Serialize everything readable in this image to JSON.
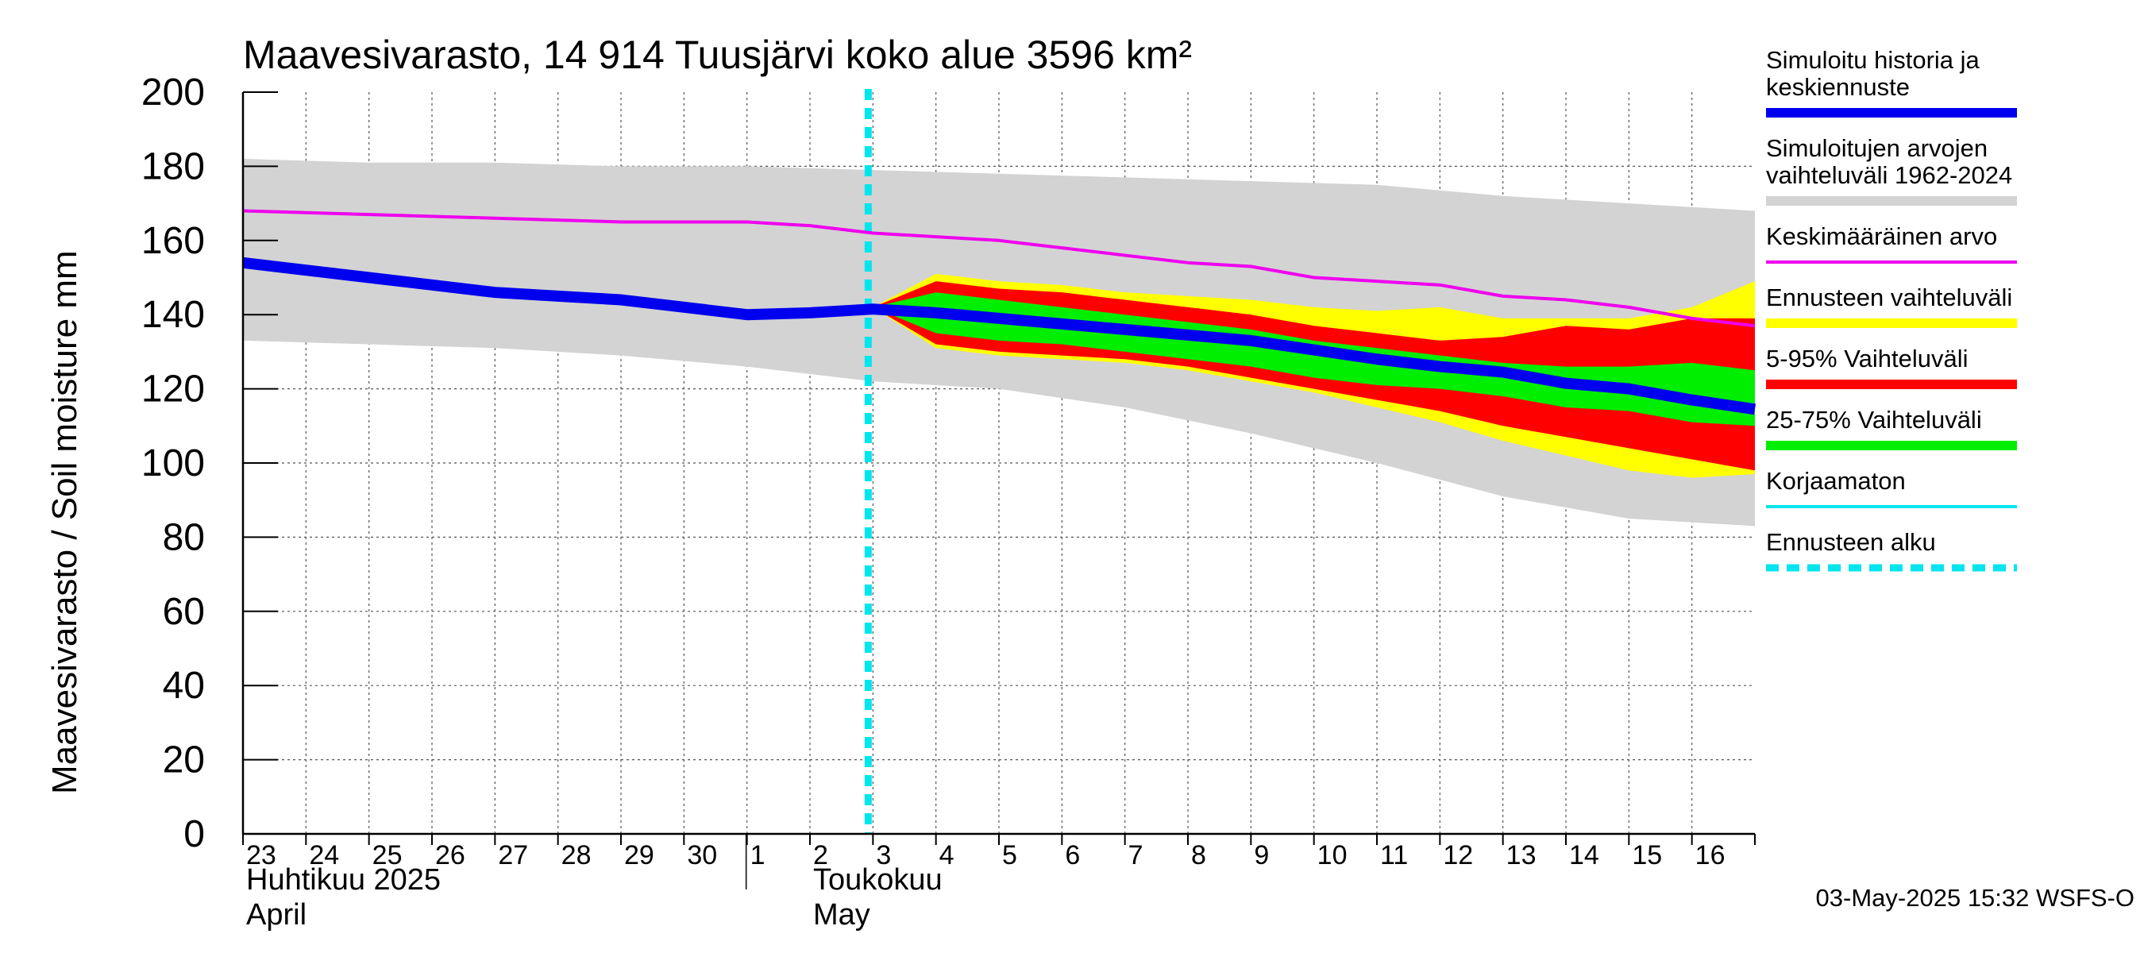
{
  "chart_data": {
    "type": "area",
    "title": "Maavesivarasto, 14 914 Tuusjärvi koko alue 3596 km²",
    "ylabel": "Maavesivarasto / Soil moisture   mm",
    "ylim": [
      0,
      200
    ],
    "yticks": [
      "0",
      "20",
      "40",
      "60",
      "80",
      "100",
      "120",
      "140",
      "160",
      "180",
      "200"
    ],
    "xlim": [
      0,
      24
    ],
    "x_tick_labels": [
      "23",
      "24",
      "25",
      "26",
      "27",
      "28",
      "29",
      "30",
      "1",
      "2",
      "3",
      "4",
      "5",
      "6",
      "7",
      "8",
      "9",
      "10",
      "11",
      "12",
      "13",
      "14",
      "15",
      "16"
    ],
    "month_labels": [
      {
        "fi": "Huhtikuu  2025",
        "en": "April",
        "day_index": 0
      },
      {
        "fi": "Toukokuu",
        "en": "May",
        "day_index": 9
      }
    ],
    "forecast_start_day": 10,
    "series": [
      {
        "name": "Simuloitujen arvojen vaihteluväli 1962-2024",
        "kind": "band",
        "x": [
          0,
          2,
          4,
          6,
          8,
          10,
          12,
          14,
          16,
          18,
          20,
          22,
          24
        ],
        "upper": [
          182,
          181,
          181,
          180,
          180,
          179,
          178,
          177,
          176,
          175,
          172,
          170,
          168
        ],
        "lower": [
          133,
          132,
          131,
          129,
          126,
          122,
          120,
          115,
          108,
          100,
          91,
          85,
          83
        ]
      },
      {
        "name": "Ennusteen vaihteluväli",
        "kind": "band",
        "x": [
          10,
          11,
          12,
          13,
          14,
          15,
          16,
          17,
          18,
          19,
          20,
          21,
          22,
          23,
          24
        ],
        "upper": [
          142,
          151,
          149,
          148,
          146,
          145,
          144,
          142,
          141,
          142,
          139,
          139,
          139,
          142,
          149
        ],
        "lower": [
          142,
          131,
          129,
          128,
          127,
          125,
          122,
          119,
          115,
          111,
          106,
          102,
          98,
          96,
          97
        ]
      },
      {
        "name": "5-95% Vaihteluväli",
        "kind": "band",
        "x": [
          10,
          11,
          12,
          13,
          14,
          15,
          16,
          17,
          18,
          19,
          20,
          21,
          22,
          23,
          24
        ],
        "upper": [
          142,
          149,
          147,
          146,
          144,
          142,
          140,
          137,
          135,
          133,
          134,
          137,
          136,
          139,
          139
        ],
        "lower": [
          142,
          132,
          130,
          129,
          128,
          126,
          123,
          120,
          117,
          114,
          110,
          107,
          104,
          101,
          98
        ]
      },
      {
        "name": "25-75% Vaihteluväli",
        "kind": "band",
        "x": [
          10,
          11,
          12,
          13,
          14,
          15,
          16,
          17,
          18,
          19,
          20,
          21,
          22,
          23,
          24
        ],
        "upper": [
          142,
          146,
          144,
          142,
          140,
          138,
          136,
          133,
          131,
          129,
          127,
          126,
          126,
          127,
          125
        ],
        "lower": [
          142,
          135,
          133,
          132,
          130,
          128,
          126,
          123,
          121,
          120,
          118,
          115,
          114,
          111,
          110
        ]
      },
      {
        "name": "Keskimääräinen arvo",
        "kind": "line",
        "color": "#ee00ee",
        "x": [
          0,
          2,
          4,
          6,
          8,
          9,
          10,
          11,
          12,
          13,
          14,
          15,
          16,
          17,
          18,
          19,
          20,
          21,
          22,
          23,
          24
        ],
        "y": [
          168,
          167,
          166,
          165,
          165,
          164,
          162,
          161,
          160,
          158,
          156,
          154,
          153,
          150,
          149,
          148,
          145,
          144,
          142,
          139,
          137
        ]
      },
      {
        "name": "Korjaamaton",
        "kind": "line",
        "color": "#00e5ee",
        "x": [
          0,
          1,
          2,
          3,
          4,
          5,
          6,
          7,
          8,
          9,
          10
        ],
        "y": [
          154.5,
          153,
          151,
          149,
          147,
          146,
          145,
          143,
          141,
          141,
          142
        ]
      },
      {
        "name": "Simuloitu historia ja keskiennuste",
        "kind": "line",
        "color": "#0000ee",
        "x": [
          0,
          1,
          2,
          3,
          4,
          5,
          6,
          7,
          8,
          9,
          10,
          11,
          12,
          13,
          14,
          15,
          16,
          17,
          18,
          19,
          20,
          21,
          22,
          23,
          24
        ],
        "y": [
          154,
          152,
          150,
          148,
          146,
          145,
          144,
          142,
          140,
          140.5,
          141.5,
          140.5,
          139,
          137.5,
          136,
          134.5,
          133,
          130.5,
          128,
          126,
          124.5,
          121.5,
          120,
          117,
          114.5
        ]
      }
    ]
  },
  "legend": {
    "items": [
      {
        "label_lines": [
          "Simuloitu historia ja",
          "keskiennuste"
        ],
        "color": "#0000ee",
        "style": "thick"
      },
      {
        "label_lines": [
          "Simuloitujen arvojen",
          "vaihteluväli 1962-2024"
        ],
        "color": "#d3d3d3",
        "style": "thick"
      },
      {
        "label_lines": [
          "Keskimääräinen arvo"
        ],
        "color": "#ee00ee",
        "style": "thin"
      },
      {
        "label_lines": [
          "Ennusteen vaihteluväli"
        ],
        "color": "#ffff00",
        "style": "thick"
      },
      {
        "label_lines": [
          "5-95% Vaihteluväli"
        ],
        "color": "#ff0000",
        "style": "thick"
      },
      {
        "label_lines": [
          "25-75% Vaihteluväli"
        ],
        "color": "#00ee00",
        "style": "thick"
      },
      {
        "label_lines": [
          "Korjaamaton"
        ],
        "color": "#00e5ee",
        "style": "thin"
      },
      {
        "label_lines": [
          "Ennusteen alku"
        ],
        "color": "#00e5ee",
        "style": "dashed"
      }
    ]
  },
  "footer": "03-May-2025 15:32 WSFS-O"
}
